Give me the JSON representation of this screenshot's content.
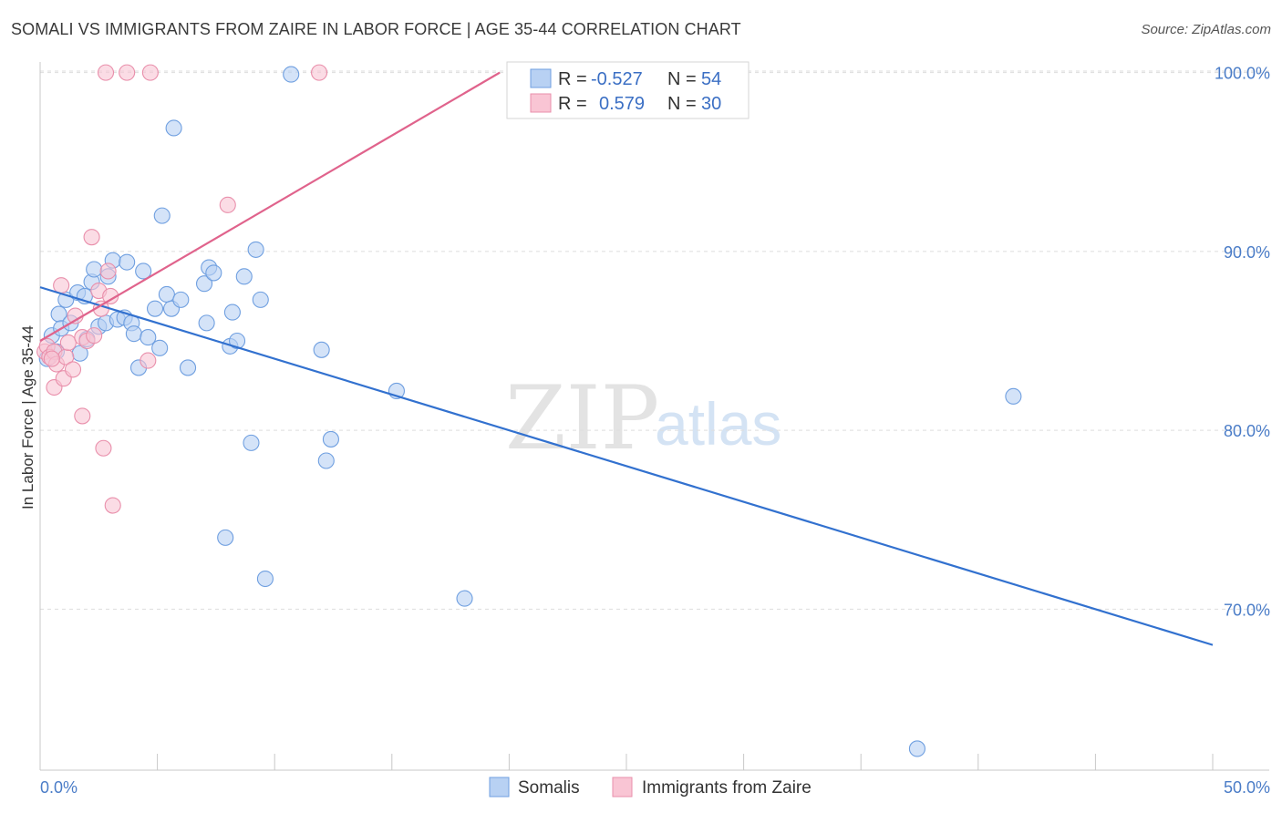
{
  "title": "SOMALI VS IMMIGRANTS FROM ZAIRE IN LABOR FORCE | AGE 35-44 CORRELATION CHART",
  "source": "Source: ZipAtlas.com",
  "watermark": {
    "zip": "ZIP",
    "atlas": "atlas"
  },
  "colors": {
    "somali_fill": "#b8d1f3",
    "somali_stroke": "#6f9fe0",
    "somali_line": "#3271cf",
    "zaire_fill": "#f9c5d4",
    "zaire_stroke": "#e98fab",
    "zaire_line": "#e0638c",
    "grid": "#dddddd",
    "tick_text": "#4a7cc7"
  },
  "legend": {
    "rows": [
      {
        "r_label": "R =",
        "r_value": "-0.527",
        "n_label": "N =",
        "n_value": "54"
      },
      {
        "r_label": "R =",
        "r_value": "0.579",
        "n_label": "N =",
        "n_value": "30"
      }
    ]
  },
  "chart_data": {
    "type": "scatter",
    "title": "SOMALI VS IMMIGRANTS FROM ZAIRE IN LABOR FORCE | AGE 35-44 CORRELATION CHART",
    "xlabel": "",
    "ylabel": "In Labor Force | Age 35-44",
    "xlim": [
      0,
      50
    ],
    "ylim": [
      61,
      101
    ],
    "x_tick_labels": [
      {
        "value": 0,
        "label": "0.0%"
      },
      {
        "value": 50,
        "label": "50.0%"
      }
    ],
    "y_tick_labels": [
      {
        "value": 100,
        "label": "100.0%"
      },
      {
        "value": 90,
        "label": "90.0%"
      },
      {
        "value": 80,
        "label": "80.0%"
      },
      {
        "value": 70,
        "label": "70.0%"
      }
    ],
    "series": [
      {
        "name": "Somalis",
        "r": -0.527,
        "n": 54,
        "trend": [
          [
            0,
            88.0
          ],
          [
            50,
            68.0
          ]
        ],
        "points": [
          [
            0.3,
            84.0
          ],
          [
            0.5,
            85.3
          ],
          [
            0.7,
            84.4
          ],
          [
            0.8,
            86.5
          ],
          [
            0.9,
            85.7
          ],
          [
            1.1,
            87.3
          ],
          [
            1.3,
            86.0
          ],
          [
            1.6,
            87.7
          ],
          [
            1.7,
            84.3
          ],
          [
            1.9,
            87.5
          ],
          [
            2.0,
            85.1
          ],
          [
            2.2,
            88.3
          ],
          [
            2.3,
            89.0
          ],
          [
            2.5,
            85.8
          ],
          [
            2.8,
            86.0
          ],
          [
            2.9,
            88.6
          ],
          [
            3.1,
            89.5
          ],
          [
            3.3,
            86.2
          ],
          [
            3.6,
            86.3
          ],
          [
            3.7,
            89.4
          ],
          [
            3.9,
            86.0
          ],
          [
            4.0,
            85.4
          ],
          [
            4.2,
            83.5
          ],
          [
            4.4,
            88.9
          ],
          [
            4.6,
            85.2
          ],
          [
            4.9,
            86.8
          ],
          [
            5.1,
            84.6
          ],
          [
            5.2,
            92.0
          ],
          [
            5.4,
            87.6
          ],
          [
            5.6,
            86.8
          ],
          [
            5.7,
            96.9
          ],
          [
            6.0,
            87.3
          ],
          [
            6.3,
            83.5
          ],
          [
            7.0,
            88.2
          ],
          [
            7.1,
            86.0
          ],
          [
            7.2,
            89.1
          ],
          [
            7.4,
            88.8
          ],
          [
            7.9,
            74.0
          ],
          [
            8.1,
            84.7
          ],
          [
            8.2,
            86.6
          ],
          [
            8.4,
            85.0
          ],
          [
            8.7,
            88.6
          ],
          [
            9.0,
            79.3
          ],
          [
            9.2,
            90.1
          ],
          [
            9.4,
            87.3
          ],
          [
            9.6,
            71.7
          ],
          [
            10.7,
            99.9
          ],
          [
            12.0,
            84.5
          ],
          [
            12.2,
            78.3
          ],
          [
            12.4,
            79.5
          ],
          [
            15.2,
            82.2
          ],
          [
            18.1,
            70.6
          ],
          [
            37.4,
            62.2
          ],
          [
            41.5,
            81.9
          ]
        ]
      },
      {
        "name": "Immigrants from Zaire",
        "r": 0.579,
        "n": 30,
        "trend": [
          [
            0,
            85.0
          ],
          [
            19.6,
            100.0
          ]
        ],
        "points": [
          [
            0.2,
            84.4
          ],
          [
            0.3,
            84.7
          ],
          [
            0.4,
            84.1
          ],
          [
            0.6,
            84.4
          ],
          [
            0.6,
            82.4
          ],
          [
            0.7,
            83.7
          ],
          [
            0.9,
            88.1
          ],
          [
            1.0,
            82.9
          ],
          [
            1.1,
            84.1
          ],
          [
            1.2,
            84.9
          ],
          [
            1.4,
            83.4
          ],
          [
            1.5,
            86.4
          ],
          [
            1.8,
            85.2
          ],
          [
            1.8,
            80.8
          ],
          [
            2.0,
            85.0
          ],
          [
            2.2,
            90.8
          ],
          [
            2.3,
            85.3
          ],
          [
            2.5,
            87.8
          ],
          [
            2.6,
            86.8
          ],
          [
            2.7,
            79.0
          ],
          [
            2.8,
            100.0
          ],
          [
            2.9,
            88.9
          ],
          [
            3.0,
            87.5
          ],
          [
            3.1,
            75.8
          ],
          [
            3.7,
            100.0
          ],
          [
            4.6,
            83.9
          ],
          [
            4.7,
            100.0
          ],
          [
            8.0,
            92.6
          ],
          [
            11.9,
            100.0
          ],
          [
            0.5,
            84.0
          ]
        ]
      }
    ]
  }
}
